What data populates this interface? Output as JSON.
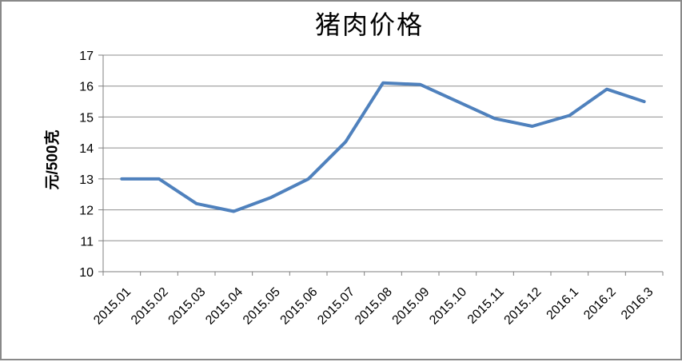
{
  "chart_data": {
    "type": "line",
    "title": "猪肉价格",
    "ylabel": "元/500克",
    "xlabel": "",
    "ylim": [
      10,
      17
    ],
    "y_ticks": [
      10,
      11,
      12,
      13,
      14,
      15,
      16,
      17
    ],
    "categories": [
      "2015.01",
      "2015.02",
      "2015.03",
      "2015.04",
      "2015.05",
      "2015.06",
      "2015.07",
      "2015.08",
      "2015.09",
      "2015.10",
      "2015.11",
      "2015.12",
      "2016.1",
      "2016.2",
      "2016.3"
    ],
    "values": [
      13.0,
      13.0,
      12.2,
      11.95,
      12.4,
      13.0,
      14.2,
      16.1,
      16.05,
      15.5,
      14.95,
      14.7,
      15.05,
      15.9,
      15.5
    ],
    "grid": true,
    "legend": false,
    "x_label_rotation_deg": -45,
    "colors": {
      "line": "#4f81bd",
      "gridline": "#8e8e8e",
      "axis": "#7f7f7f",
      "text": "#000000",
      "frame_border": "#898989",
      "background": "#ffffff"
    }
  }
}
